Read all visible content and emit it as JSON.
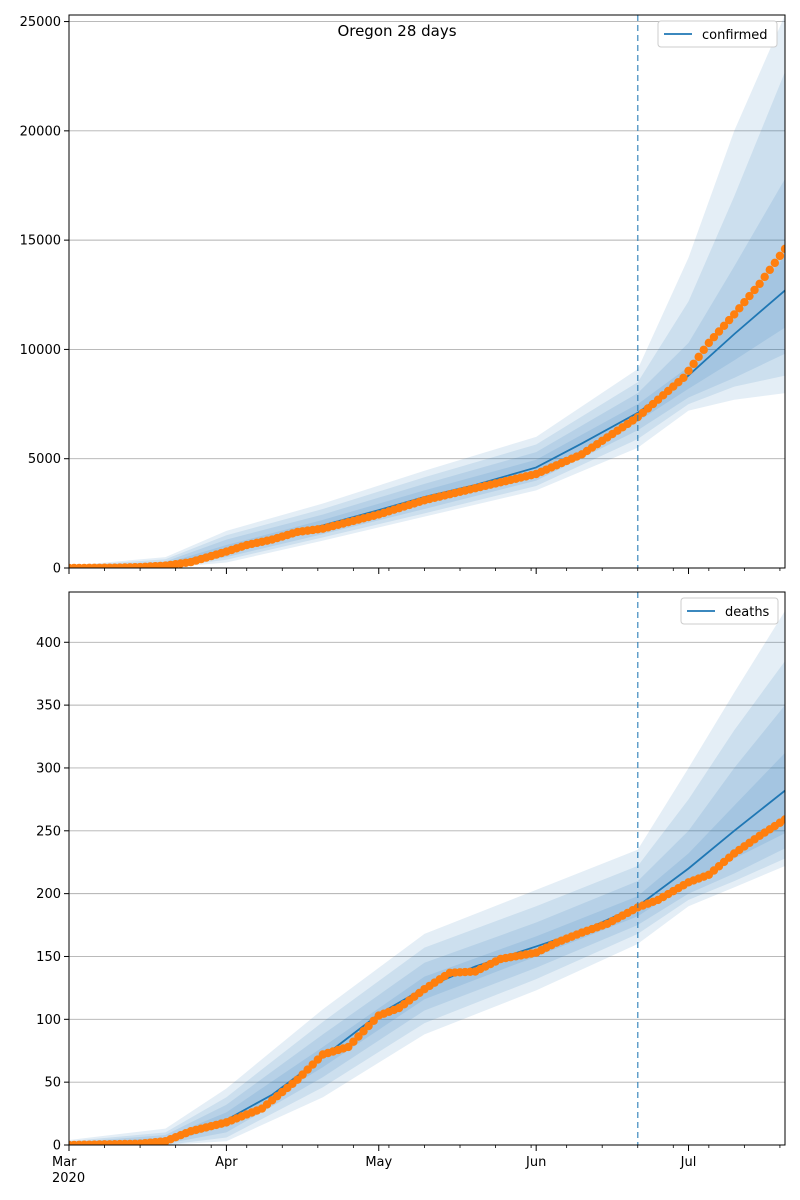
{
  "figure": {
    "title": "Oregon 28 days"
  },
  "colors": {
    "model_line": "#1f77b4",
    "observed_points": "#ff7f0e",
    "band": "#1f77b4",
    "grid": "#b0b0b0",
    "forecast_marker": "#1f77b4"
  },
  "x_axis": {
    "start_date": "2020-03-01",
    "end_date": "2020-07-20",
    "forecast_start": "2020-06-21",
    "month_labels": [
      {
        "date": "2020-03-01",
        "label": "Mar"
      },
      {
        "date": "2020-04-01",
        "label": "Apr"
      },
      {
        "date": "2020-05-01",
        "label": "May"
      },
      {
        "date": "2020-06-01",
        "label": "Jun"
      },
      {
        "date": "2020-07-01",
        "label": "Jul"
      }
    ],
    "year_label": "2020"
  },
  "chart_data": [
    {
      "type": "line",
      "panel": "top",
      "legend": "confirmed",
      "legend_position": "top-right",
      "grid": "horizontal",
      "ylim": [
        0,
        25300
      ],
      "yticks": [
        0,
        5000,
        10000,
        15000,
        20000,
        25000
      ],
      "model_median": [
        {
          "x": "2020-03-01",
          "y": 30
        },
        {
          "x": "2020-03-10",
          "y": 40
        },
        {
          "x": "2020-03-15",
          "y": 60
        },
        {
          "x": "2020-03-20",
          "y": 150
        },
        {
          "x": "2020-03-25",
          "y": 400
        },
        {
          "x": "2020-04-01",
          "y": 850
        },
        {
          "x": "2020-04-10",
          "y": 1350
        },
        {
          "x": "2020-04-20",
          "y": 1950
        },
        {
          "x": "2020-05-01",
          "y": 2650
        },
        {
          "x": "2020-05-10",
          "y": 3250
        },
        {
          "x": "2020-05-20",
          "y": 3800
        },
        {
          "x": "2020-06-01",
          "y": 4600
        },
        {
          "x": "2020-06-10",
          "y": 5700
        },
        {
          "x": "2020-06-21",
          "y": 7100
        },
        {
          "x": "2020-06-30",
          "y": 8600
        },
        {
          "x": "2020-07-10",
          "y": 10700
        },
        {
          "x": "2020-07-20",
          "y": 12700
        }
      ],
      "bands": [
        {
          "name": "50%",
          "points": [
            {
              "x": "2020-03-01",
              "lo": 0,
              "hi": 50
            },
            {
              "x": "2020-03-20",
              "lo": 100,
              "hi": 220
            },
            {
              "x": "2020-04-01",
              "lo": 650,
              "hi": 1050
            },
            {
              "x": "2020-04-20",
              "lo": 1750,
              "hi": 2200
            },
            {
              "x": "2020-05-10",
              "lo": 2950,
              "hi": 3550
            },
            {
              "x": "2020-06-01",
              "lo": 4300,
              "hi": 4950
            },
            {
              "x": "2020-06-21",
              "lo": 6700,
              "hi": 7500
            },
            {
              "x": "2020-07-01",
              "lo": 8200,
              "hi": 9200
            },
            {
              "x": "2020-07-10",
              "lo": 9500,
              "hi": 11400
            },
            {
              "x": "2020-07-20",
              "lo": 11000,
              "hi": 14300
            }
          ]
        },
        {
          "name": "80%",
          "points": [
            {
              "x": "2020-03-01",
              "lo": 0,
              "hi": 60
            },
            {
              "x": "2020-03-20",
              "lo": 60,
              "hi": 300
            },
            {
              "x": "2020-04-01",
              "lo": 500,
              "hi": 1300
            },
            {
              "x": "2020-04-20",
              "lo": 1550,
              "hi": 2450
            },
            {
              "x": "2020-05-10",
              "lo": 2700,
              "hi": 3850
            },
            {
              "x": "2020-06-01",
              "lo": 4000,
              "hi": 5300
            },
            {
              "x": "2020-06-21",
              "lo": 6300,
              "hi": 8000
            },
            {
              "x": "2020-07-01",
              "lo": 7800,
              "hi": 10300
            },
            {
              "x": "2020-07-10",
              "lo": 8700,
              "hi": 13800
            },
            {
              "x": "2020-07-20",
              "lo": 9800,
              "hi": 17800
            }
          ]
        },
        {
          "name": "95%",
          "points": [
            {
              "x": "2020-03-01",
              "lo": 0,
              "hi": 80
            },
            {
              "x": "2020-03-20",
              "lo": 30,
              "hi": 400
            },
            {
              "x": "2020-04-01",
              "lo": 380,
              "hi": 1500
            },
            {
              "x": "2020-04-20",
              "lo": 1400,
              "hi": 2700
            },
            {
              "x": "2020-05-10",
              "lo": 2500,
              "hi": 4150
            },
            {
              "x": "2020-06-01",
              "lo": 3750,
              "hi": 5650
            },
            {
              "x": "2020-06-21",
              "lo": 5900,
              "hi": 8500
            },
            {
              "x": "2020-07-01",
              "lo": 7500,
              "hi": 12200
            },
            {
              "x": "2020-07-10",
              "lo": 8300,
              "hi": 17000
            },
            {
              "x": "2020-07-20",
              "lo": 8800,
              "hi": 22700
            }
          ]
        },
        {
          "name": "99%",
          "points": [
            {
              "x": "2020-03-01",
              "lo": 0,
              "hi": 100
            },
            {
              "x": "2020-03-20",
              "lo": 0,
              "hi": 500
            },
            {
              "x": "2020-04-01",
              "lo": 250,
              "hi": 1700
            },
            {
              "x": "2020-04-20",
              "lo": 1250,
              "hi": 2950
            },
            {
              "x": "2020-05-10",
              "lo": 2350,
              "hi": 4450
            },
            {
              "x": "2020-06-01",
              "lo": 3550,
              "hi": 6000
            },
            {
              "x": "2020-06-21",
              "lo": 5500,
              "hi": 9100
            },
            {
              "x": "2020-07-01",
              "lo": 7200,
              "hi": 14200
            },
            {
              "x": "2020-07-10",
              "lo": 7700,
              "hi": 20000
            },
            {
              "x": "2020-07-20",
              "lo": 8000,
              "hi": 25300
            }
          ]
        }
      ],
      "observed": [
        {
          "x": "2020-03-01",
          "y": 0
        },
        {
          "x": "2020-03-10",
          "y": 15
        },
        {
          "x": "2020-03-15",
          "y": 40
        },
        {
          "x": "2020-03-20",
          "y": 110
        },
        {
          "x": "2020-03-25",
          "y": 270
        },
        {
          "x": "2020-04-01",
          "y": 750
        },
        {
          "x": "2020-04-05",
          "y": 1050
        },
        {
          "x": "2020-04-10",
          "y": 1300
        },
        {
          "x": "2020-04-15",
          "y": 1650
        },
        {
          "x": "2020-04-20",
          "y": 1800
        },
        {
          "x": "2020-05-01",
          "y": 2450
        },
        {
          "x": "2020-05-10",
          "y": 3100
        },
        {
          "x": "2020-05-20",
          "y": 3650
        },
        {
          "x": "2020-06-01",
          "y": 4300
        },
        {
          "x": "2020-06-10",
          "y": 5200
        },
        {
          "x": "2020-06-21",
          "y": 6900
        },
        {
          "x": "2020-06-30",
          "y": 8700
        },
        {
          "x": "2020-07-05",
          "y": 10300
        },
        {
          "x": "2020-07-10",
          "y": 11600
        },
        {
          "x": "2020-07-15",
          "y": 13000
        },
        {
          "x": "2020-07-20",
          "y": 14600
        }
      ]
    },
    {
      "type": "line",
      "panel": "bottom",
      "legend": "deaths",
      "legend_position": "top-right",
      "grid": "horizontal",
      "ylim": [
        0,
        440
      ],
      "yticks": [
        0,
        50,
        100,
        150,
        200,
        250,
        300,
        350,
        400
      ],
      "model_median": [
        {
          "x": "2020-03-01",
          "y": 0
        },
        {
          "x": "2020-03-15",
          "y": 1
        },
        {
          "x": "2020-03-20",
          "y": 4
        },
        {
          "x": "2020-03-25",
          "y": 10
        },
        {
          "x": "2020-04-01",
          "y": 20
        },
        {
          "x": "2020-04-10",
          "y": 40
        },
        {
          "x": "2020-04-20",
          "y": 70
        },
        {
          "x": "2020-05-01",
          "y": 104
        },
        {
          "x": "2020-05-10",
          "y": 125
        },
        {
          "x": "2020-05-20",
          "y": 142
        },
        {
          "x": "2020-06-01",
          "y": 158
        },
        {
          "x": "2020-06-10",
          "y": 170
        },
        {
          "x": "2020-06-21",
          "y": 190
        },
        {
          "x": "2020-07-01",
          "y": 220
        },
        {
          "x": "2020-07-10",
          "y": 250
        },
        {
          "x": "2020-07-20",
          "y": 282
        }
      ],
      "bands": [
        {
          "name": "50%",
          "points": [
            {
              "x": "2020-03-01",
              "lo": 0,
              "hi": 1
            },
            {
              "x": "2020-03-20",
              "lo": 2,
              "hi": 6
            },
            {
              "x": "2020-04-01",
              "lo": 15,
              "hi": 26
            },
            {
              "x": "2020-04-20",
              "lo": 62,
              "hi": 78
            },
            {
              "x": "2020-05-10",
              "lo": 116,
              "hi": 134
            },
            {
              "x": "2020-06-01",
              "lo": 150,
              "hi": 166
            },
            {
              "x": "2020-06-21",
              "lo": 182,
              "hi": 198
            },
            {
              "x": "2020-07-01",
              "lo": 208,
              "hi": 232
            },
            {
              "x": "2020-07-10",
              "lo": 228,
              "hi": 270
            },
            {
              "x": "2020-07-20",
              "lo": 248,
              "hi": 312
            }
          ]
        },
        {
          "name": "80%",
          "points": [
            {
              "x": "2020-03-01",
              "lo": 0,
              "hi": 2
            },
            {
              "x": "2020-03-20",
              "lo": 1,
              "hi": 8
            },
            {
              "x": "2020-04-01",
              "lo": 10,
              "hi": 32
            },
            {
              "x": "2020-04-20",
              "lo": 54,
              "hi": 88
            },
            {
              "x": "2020-05-10",
              "lo": 107,
              "hi": 145
            },
            {
              "x": "2020-06-01",
              "lo": 141,
              "hi": 177
            },
            {
              "x": "2020-06-21",
              "lo": 175,
              "hi": 210
            },
            {
              "x": "2020-07-01",
              "lo": 200,
              "hi": 250
            },
            {
              "x": "2020-07-10",
              "lo": 216,
              "hi": 300
            },
            {
              "x": "2020-07-20",
              "lo": 236,
              "hi": 350
            }
          ]
        },
        {
          "name": "95%",
          "points": [
            {
              "x": "2020-03-01",
              "lo": 0,
              "hi": 3
            },
            {
              "x": "2020-03-20",
              "lo": 0,
              "hi": 10
            },
            {
              "x": "2020-04-01",
              "lo": 6,
              "hi": 38
            },
            {
              "x": "2020-04-20",
              "lo": 46,
              "hi": 98
            },
            {
              "x": "2020-05-10",
              "lo": 97,
              "hi": 157
            },
            {
              "x": "2020-06-01",
              "lo": 132,
              "hi": 190
            },
            {
              "x": "2020-06-21",
              "lo": 168,
              "hi": 222
            },
            {
              "x": "2020-07-01",
              "lo": 195,
              "hi": 275
            },
            {
              "x": "2020-07-10",
              "lo": 210,
              "hi": 330
            },
            {
              "x": "2020-07-20",
              "lo": 228,
              "hi": 385
            }
          ]
        },
        {
          "name": "99%",
          "points": [
            {
              "x": "2020-03-01",
              "lo": 0,
              "hi": 4
            },
            {
              "x": "2020-03-20",
              "lo": 0,
              "hi": 13
            },
            {
              "x": "2020-04-01",
              "lo": 3,
              "hi": 45
            },
            {
              "x": "2020-04-20",
              "lo": 38,
              "hi": 108
            },
            {
              "x": "2020-05-10",
              "lo": 88,
              "hi": 168
            },
            {
              "x": "2020-06-01",
              "lo": 123,
              "hi": 203
            },
            {
              "x": "2020-06-21",
              "lo": 160,
              "hi": 235
            },
            {
              "x": "2020-07-01",
              "lo": 190,
              "hi": 300
            },
            {
              "x": "2020-07-10",
              "lo": 205,
              "hi": 360
            },
            {
              "x": "2020-07-20",
              "lo": 222,
              "hi": 425
            }
          ]
        }
      ],
      "observed": [
        {
          "x": "2020-03-01",
          "y": 0
        },
        {
          "x": "2020-03-15",
          "y": 1
        },
        {
          "x": "2020-03-20",
          "y": 3
        },
        {
          "x": "2020-03-25",
          "y": 11
        },
        {
          "x": "2020-04-01",
          "y": 18
        },
        {
          "x": "2020-04-08",
          "y": 29
        },
        {
          "x": "2020-04-15",
          "y": 52
        },
        {
          "x": "2020-04-20",
          "y": 72
        },
        {
          "x": "2020-04-25",
          "y": 78
        },
        {
          "x": "2020-05-01",
          "y": 103
        },
        {
          "x": "2020-05-05",
          "y": 109
        },
        {
          "x": "2020-05-10",
          "y": 124
        },
        {
          "x": "2020-05-15",
          "y": 137
        },
        {
          "x": "2020-05-20",
          "y": 138
        },
        {
          "x": "2020-05-25",
          "y": 148
        },
        {
          "x": "2020-06-01",
          "y": 153
        },
        {
          "x": "2020-06-05",
          "y": 161
        },
        {
          "x": "2020-06-10",
          "y": 169
        },
        {
          "x": "2020-06-15",
          "y": 176
        },
        {
          "x": "2020-06-21",
          "y": 189
        },
        {
          "x": "2020-06-25",
          "y": 195
        },
        {
          "x": "2020-07-01",
          "y": 209
        },
        {
          "x": "2020-07-05",
          "y": 215
        },
        {
          "x": "2020-07-10",
          "y": 232
        },
        {
          "x": "2020-07-15",
          "y": 246
        },
        {
          "x": "2020-07-20",
          "y": 259
        }
      ]
    }
  ]
}
